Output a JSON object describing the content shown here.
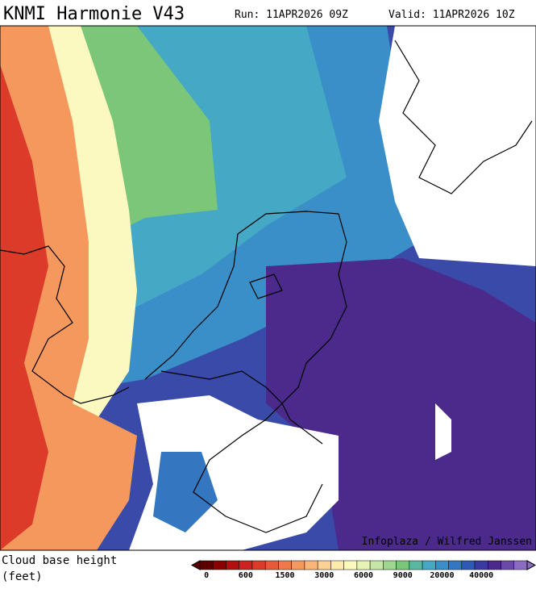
{
  "header": {
    "title": "KNMI Harmonie V43",
    "run": "Run: 11APR2026 09Z",
    "valid": "Valid: 11APR2026 10Z"
  },
  "map": {
    "credit": "Infoplaza / Wilfred Janssen"
  },
  "legend": {
    "title": "Cloud base height",
    "unit": "(feet)",
    "colors": [
      "#5a0000",
      "#8b0000",
      "#b01010",
      "#cc2222",
      "#dd3b2a",
      "#e65a3a",
      "#ee7a4a",
      "#f4985e",
      "#f8b679",
      "#fbd294",
      "#fcebad",
      "#fbf8c0",
      "#e6f3b4",
      "#c6e6a8",
      "#a0d68f",
      "#7cc679",
      "#5bb8a0",
      "#45a8c4",
      "#3b8fc8",
      "#3576c0",
      "#2e5ab4",
      "#3a3aa0",
      "#4b2a8c",
      "#6a4aa8",
      "#8a6cc0"
    ],
    "ticks": [
      0,
      600,
      1500,
      3000,
      6000,
      9000,
      20000,
      40000
    ]
  }
}
